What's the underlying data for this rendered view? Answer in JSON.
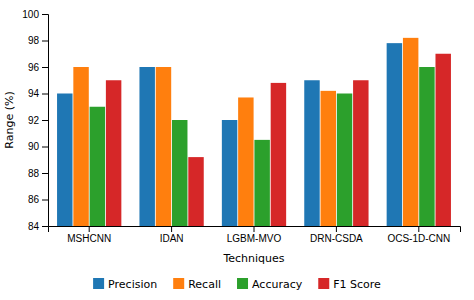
{
  "chart_data": {
    "type": "bar",
    "categories": [
      "MSHCNN",
      "IDAN",
      "LGBM-MVO",
      "DRN-CSDA",
      "OCS-1D-CNN"
    ],
    "series": [
      {
        "name": "Precision",
        "values": [
          94.0,
          96.0,
          92.0,
          95.0,
          97.8
        ]
      },
      {
        "name": "Recall",
        "values": [
          96.0,
          96.0,
          93.7,
          94.2,
          98.2
        ]
      },
      {
        "name": "Accuracy",
        "values": [
          93.0,
          92.0,
          90.5,
          94.0,
          96.0
        ]
      },
      {
        "name": "F1 Score",
        "values": [
          95.0,
          89.2,
          94.8,
          95.0,
          97.0
        ]
      }
    ],
    "xlabel": "Techniques",
    "ylabel": "Range (%)",
    "ylim": [
      84,
      100
    ],
    "yticks": [
      84,
      86,
      88,
      90,
      92,
      94,
      96,
      98,
      100
    ],
    "grid": false,
    "legend": "bottom"
  }
}
